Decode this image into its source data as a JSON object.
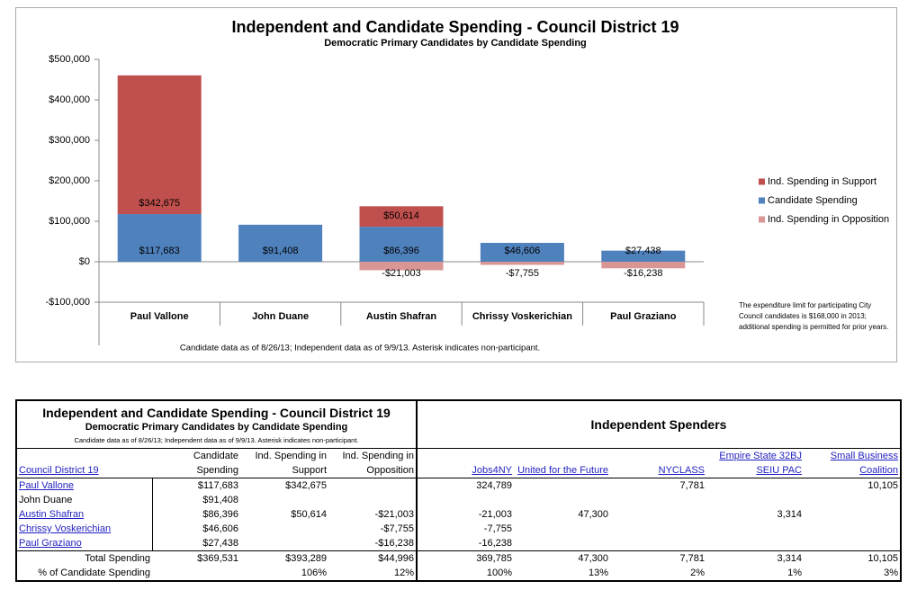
{
  "chart_data": {
    "type": "bar",
    "stacked": true,
    "title": "Independent and Candidate Spending - Council District 19",
    "subtitle": "Democratic Primary Candidates by Candidate Spending",
    "footnote": "Candidate data as of 8/26/13; Independent data as of 9/9/13. Asterisk indicates non-participant.",
    "note": "The expenditure limit for participating City Council candidates is $168,000 in 2013; additional spending is permitted for prior years.",
    "categories": [
      "Paul Vallone",
      "John Duane",
      "Austin Shafran",
      "Chrissy Voskerichian",
      "Paul Graziano"
    ],
    "series": [
      {
        "name": "Ind. Spending in Support",
        "color": "#c0504d",
        "values": [
          342675,
          null,
          50614,
          null,
          null
        ],
        "value_labels": [
          "$342,675",
          null,
          "$50,614",
          null,
          null
        ]
      },
      {
        "name": "Candidate Spending",
        "color": "#4f81bd",
        "values": [
          117683,
          91408,
          86396,
          46606,
          27438
        ],
        "value_labels": [
          "$117,683",
          "$91,408",
          "$86,396",
          "$46,606",
          "$27,438"
        ]
      },
      {
        "name": "Ind. Spending in Opposition",
        "color": "#d99694",
        "values": [
          null,
          null,
          -21003,
          -7755,
          -16238
        ],
        "value_labels": [
          null,
          null,
          "-$21,003",
          "-$7,755",
          "-$16,238"
        ]
      }
    ],
    "ylim": [
      -100000,
      500000
    ],
    "yticks": [
      {
        "value": -100000,
        "label": "-$100,000"
      },
      {
        "value": 0,
        "label": "$0"
      },
      {
        "value": 100000,
        "label": "$100,000"
      },
      {
        "value": 200000,
        "label": "$200,000"
      },
      {
        "value": 300000,
        "label": "$300,000"
      },
      {
        "value": 400000,
        "label": "$400,000"
      },
      {
        "value": 500000,
        "label": "$500,000"
      }
    ],
    "legend": "right"
  },
  "table": {
    "title": "Independent and Candidate Spending - Council District 19",
    "subtitle": "Democratic Primary Candidates by Candidate Spending",
    "note": "Candidate data as of 8/26/13; Independent data as of 9/9/13. Asterisk indicates non-participant.",
    "group_header": "Independent Spenders",
    "columns": [
      "Council District 19",
      "Candidate Spending",
      "Ind. Spending in Support",
      "Ind. Spending in Opposition",
      "Jobs4NY",
      "United for the Future",
      "NYCLASS",
      "Empire State 32BJ SEIU PAC",
      "Small Business Coalition"
    ],
    "rows": [
      [
        "Paul Vallone",
        "$117,683",
        "$342,675",
        null,
        "324,789",
        null,
        "7,781",
        null,
        "10,105"
      ],
      [
        "John Duane",
        "$91,408",
        null,
        null,
        null,
        null,
        null,
        null,
        null
      ],
      [
        "Austin Shafran",
        "$86,396",
        "$50,614",
        "-$21,003",
        "-21,003",
        "47,300",
        null,
        "3,314",
        null
      ],
      [
        "Chrissy Voskerichian",
        "$46,606",
        null,
        "-$7,755",
        "-7,755",
        null,
        null,
        null,
        null
      ],
      [
        "Paul Graziano",
        "$27,438",
        null,
        "-$16,238",
        "-16,238",
        null,
        null,
        null,
        null
      ],
      [
        "Total Spending",
        "$369,531",
        "$393,289",
        "$44,996",
        "369,785",
        "47,300",
        "7,781",
        "3,314",
        "10,105"
      ],
      [
        "% of Candidate Spending",
        null,
        "106%",
        "12%",
        "100%",
        "13%",
        "2%",
        "1%",
        "3%"
      ]
    ]
  }
}
